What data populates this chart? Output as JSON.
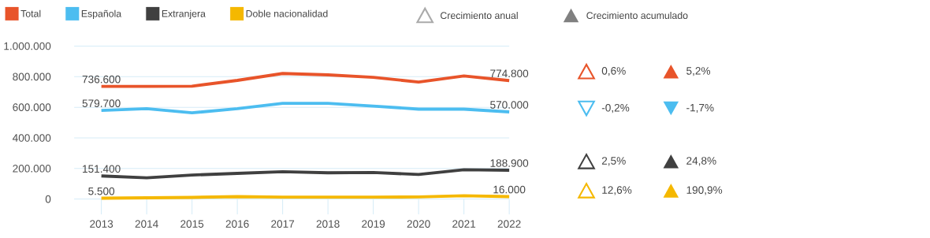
{
  "chart_data": {
    "type": "line",
    "categories": [
      "2013",
      "2014",
      "2015",
      "2016",
      "2017",
      "2018",
      "2019",
      "2020",
      "2021",
      "2022"
    ],
    "series": [
      {
        "name": "Total",
        "color": "#e8542a",
        "values": [
          736600,
          736600,
          738000,
          776000,
          821000,
          812000,
          796000,
          765000,
          805000,
          774800
        ],
        "value_labels": [
          "736.600",
          null,
          null,
          null,
          null,
          null,
          null,
          null,
          null,
          "774.800"
        ]
      },
      {
        "name": "Española",
        "color": "#4cbdf0",
        "values": [
          579700,
          591000,
          564000,
          591000,
          626000,
          626000,
          608000,
          588000,
          588000,
          570000
        ],
        "value_labels": [
          "579.700",
          null,
          null,
          null,
          null,
          null,
          null,
          null,
          null,
          "570.000"
        ]
      },
      {
        "name": "Extranjera",
        "color": "#404040",
        "values": [
          151400,
          139000,
          157000,
          168000,
          179000,
          172000,
          174000,
          161000,
          192000,
          188900
        ],
        "value_labels": [
          "151.400",
          null,
          null,
          null,
          null,
          null,
          null,
          null,
          null,
          "188.900"
        ]
      },
      {
        "name": "Doble nacionalidad",
        "color": "#f5b800",
        "values": [
          5500,
          8000,
          11000,
          16000,
          13000,
          13000,
          13000,
          14000,
          22000,
          16000
        ],
        "value_labels": [
          "5.500",
          null,
          null,
          null,
          null,
          null,
          null,
          null,
          null,
          "16.000"
        ]
      }
    ],
    "ylim": [
      0,
      1000000
    ],
    "yticks": [
      0,
      {
        "value": 200000,
        "label": "200.000"
      },
      {
        "value": 400000,
        "label": "400.000"
      },
      {
        "value": 600000,
        "label": "600.000"
      },
      {
        "value": 800000,
        "label": "800.000"
      },
      {
        "value": 1000000,
        "label": "1.000.000"
      }
    ],
    "grid": "y",
    "legend": "top",
    "annotations": [
      "Crecimiento anual",
      "Crecimiento acumulado",
      "0,6%",
      "5,2%",
      "-0,2%",
      "-1,7%",
      "2,5%",
      "24,8%",
      "12,6%",
      "190,9%"
    ]
  }
}
